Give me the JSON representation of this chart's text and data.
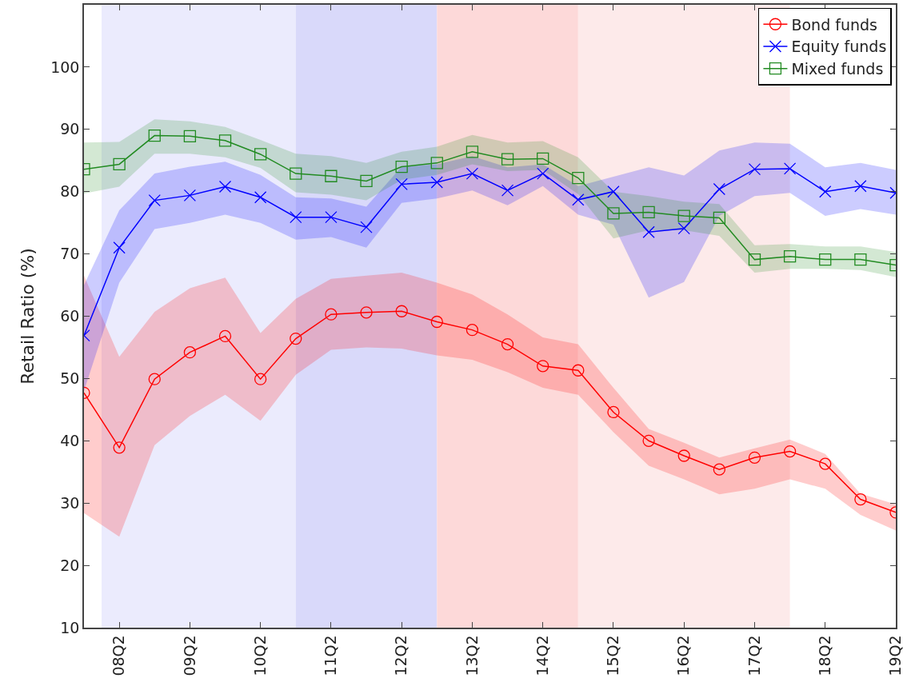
{
  "chart_data": {
    "type": "line",
    "ylabel": "Retail Ratio (%)",
    "categories": [
      null,
      "08Q2",
      null,
      "09Q2",
      null,
      "10Q2",
      null,
      "11Q2",
      null,
      "12Q2",
      null,
      "13Q2",
      null,
      "14Q2",
      null,
      "15Q2",
      null,
      "16Q2",
      null,
      "17Q2",
      null,
      "18Q2",
      null,
      "19Q2"
    ],
    "ylim": [
      10,
      110
    ],
    "yticks": [
      10,
      20,
      30,
      40,
      50,
      60,
      70,
      80,
      90,
      100
    ],
    "grid": false,
    "legend": "top right",
    "line_style": "solid",
    "series": [
      {
        "name": "Bond funds",
        "color": "#ff0000",
        "marker": "circle",
        "values": [
          47.7,
          38.9,
          49.9,
          54.2,
          56.8,
          49.9,
          56.4,
          60.3,
          60.6,
          60.8,
          59.1,
          57.8,
          55.5,
          52.0,
          51.3,
          44.6,
          40.0,
          37.6,
          35.4,
          37.3,
          38.3,
          36.3,
          30.6,
          28.5
        ],
        "upper": [
          66.5,
          53.5,
          60.7,
          64.5,
          66.2,
          57.3,
          62.8,
          66.0,
          66.5,
          67.0,
          65.4,
          63.5,
          60.3,
          56.6,
          55.5,
          48.5,
          41.9,
          39.7,
          37.3,
          38.8,
          40.2,
          37.9,
          31.5,
          29.8
        ],
        "lower": [
          28.4,
          24.6,
          39.3,
          44.0,
          47.4,
          43.2,
          50.6,
          54.6,
          55.0,
          54.8,
          53.7,
          53.0,
          51.0,
          48.5,
          47.4,
          41.4,
          36.0,
          33.8,
          31.4,
          32.3,
          33.8,
          32.3,
          28.1,
          25.6
        ]
      },
      {
        "name": "Equity funds",
        "color": "#0000ff",
        "marker": "cross",
        "values": [
          56.9,
          71.0,
          78.6,
          79.4,
          80.8,
          79.1,
          75.9,
          75.9,
          74.3,
          81.2,
          81.5,
          82.9,
          80.2,
          82.9,
          78.7,
          80.0,
          73.5,
          74.1,
          80.4,
          83.6,
          83.7,
          80.0,
          80.9,
          79.8
        ],
        "upper": [
          65.0,
          77.0,
          82.9,
          84.0,
          84.8,
          82.7,
          79.1,
          78.9,
          77.6,
          84.0,
          84.4,
          85.7,
          83.9,
          84.4,
          80.9,
          82.4,
          83.9,
          82.6,
          86.6,
          87.9,
          87.7,
          83.9,
          84.6,
          83.5
        ],
        "lower": [
          48.0,
          65.4,
          74.0,
          75.0,
          76.3,
          75.0,
          72.3,
          72.7,
          71.0,
          78.2,
          78.9,
          80.2,
          77.8,
          80.9,
          76.3,
          74.7,
          63.0,
          65.5,
          76.1,
          79.3,
          79.8,
          76.1,
          77.2,
          76.3
        ]
      },
      {
        "name": "Mixed funds",
        "color": "#228b22",
        "marker": "square",
        "values": [
          83.6,
          84.4,
          89.0,
          88.9,
          88.2,
          86.0,
          82.9,
          82.5,
          81.7,
          84.0,
          84.6,
          86.4,
          85.2,
          85.3,
          82.2,
          76.5,
          76.7,
          76.1,
          75.8,
          69.1,
          69.6,
          69.1,
          69.1,
          68.2
        ],
        "upper": [
          87.9,
          88.0,
          91.6,
          91.3,
          90.4,
          88.3,
          86.1,
          85.7,
          84.6,
          86.4,
          87.2,
          89.1,
          87.9,
          88.1,
          85.5,
          80.0,
          79.3,
          78.4,
          78.0,
          71.4,
          71.6,
          71.2,
          71.2,
          70.3
        ],
        "lower": [
          79.7,
          80.8,
          86.1,
          86.1,
          85.5,
          83.8,
          79.9,
          79.5,
          78.6,
          81.9,
          82.7,
          84.4,
          83.3,
          83.5,
          79.6,
          72.5,
          73.8,
          73.8,
          72.9,
          67.0,
          67.6,
          67.6,
          67.4,
          66.3
        ]
      }
    ]
  }
}
